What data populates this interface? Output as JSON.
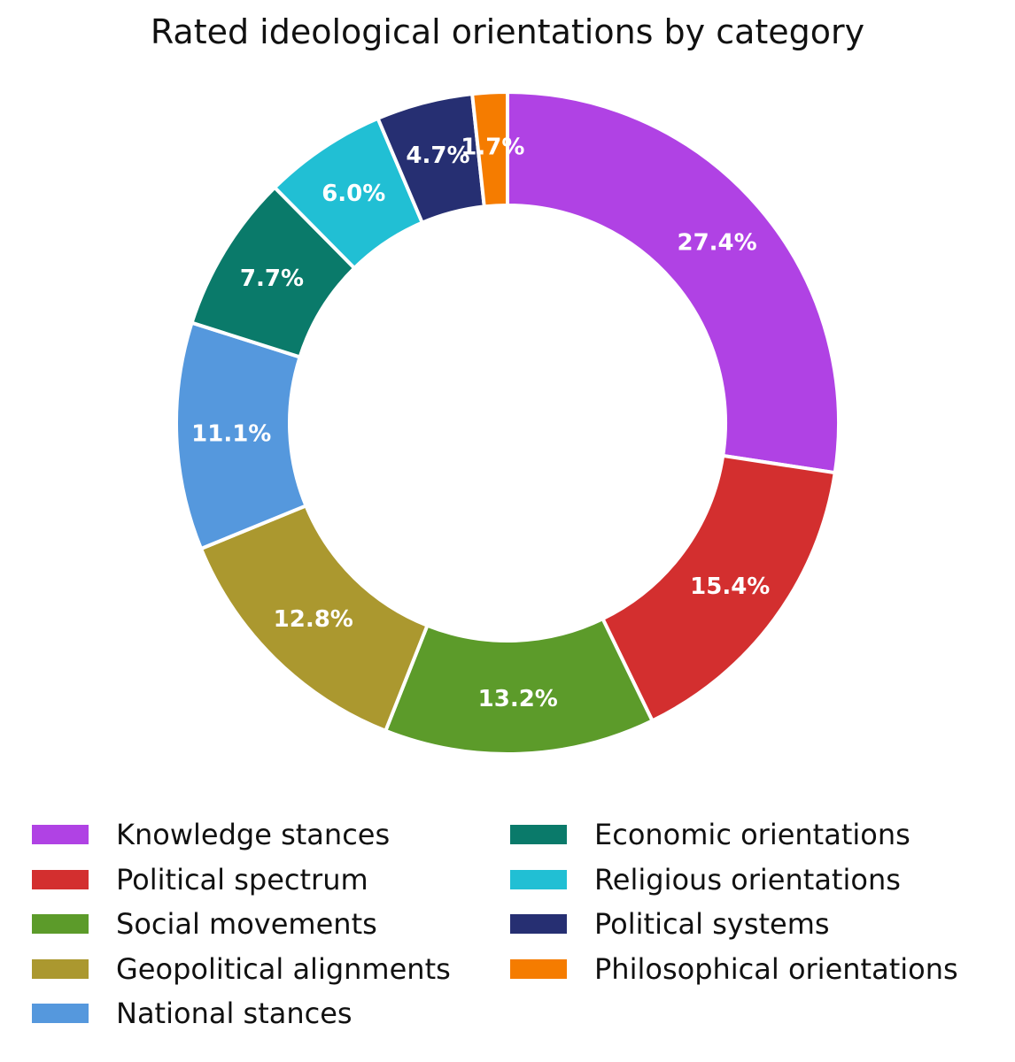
{
  "chart_data": {
    "type": "pie",
    "title": "Rated ideological orientations by category",
    "donut": true,
    "legend_position": "bottom",
    "categories": [
      "Knowledge stances",
      "Political spectrum",
      "Social movements",
      "Geopolitical alignments",
      "National stances",
      "Economic orientations",
      "Religious orientations",
      "Political systems",
      "Philosophical orientations"
    ],
    "values": [
      27.4,
      15.4,
      13.2,
      12.8,
      11.1,
      7.7,
      6.0,
      4.7,
      1.7
    ],
    "labels": [
      "27.4%",
      "15.4%",
      "13.2%",
      "12.8%",
      "11.1%",
      "7.7%",
      "6.0%",
      "4.7%",
      "1.7%"
    ],
    "colors": [
      "#b042e4",
      "#d32f2f",
      "#5c9b2a",
      "#ab982f",
      "#5598dd",
      "#0a7a6a",
      "#21bfd4",
      "#262f72",
      "#f57c00"
    ]
  }
}
